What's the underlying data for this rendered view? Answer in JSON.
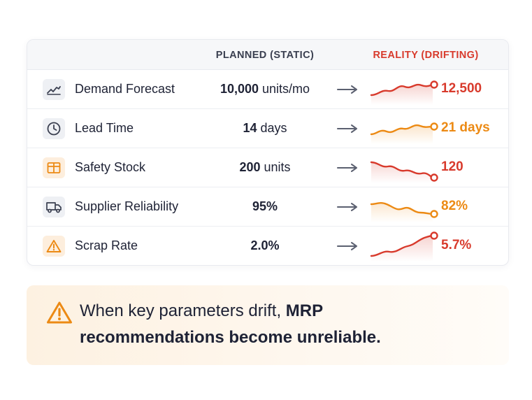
{
  "table": {
    "header": {
      "planned": "PLANNED (STATIC)",
      "reality": "REALITY (DRIFTING)"
    },
    "rows": [
      {
        "icon": "trend-chart-icon",
        "label": "Demand Forecast",
        "planned_value": "10,000",
        "planned_unit": " units/mo",
        "reality": "12,500",
        "trend": "rising",
        "color": "#d83a2c"
      },
      {
        "icon": "clock-icon",
        "label": "Lead Time",
        "planned_value": "14",
        "planned_unit": " days",
        "reality": "21 days",
        "trend": "rising",
        "color": "#ec8a14"
      },
      {
        "icon": "box-icon",
        "label": "Safety Stock",
        "planned_value": "200",
        "planned_unit": " units",
        "reality": "120",
        "trend": "falling",
        "color": "#d83a2c"
      },
      {
        "icon": "truck-icon",
        "label": "Supplier Reliability",
        "planned_value": "95%",
        "planned_unit": "",
        "reality": "82%",
        "trend": "falling",
        "color": "#ec8a14"
      },
      {
        "icon": "warning-icon",
        "label": "Scrap Rate",
        "planned_value": "2.0%",
        "planned_unit": "",
        "reality": "5.7%",
        "trend": "rising",
        "color": "#d83a2c"
      }
    ]
  },
  "callout": {
    "icon": "warning-icon",
    "text_plain": "When key parameters drift, ",
    "text_bold": "MRP recommendations become unreliable."
  },
  "colors": {
    "red": "#d83a2c",
    "orange": "#ec8a14",
    "text": "#1e2235",
    "arrow": "#5b6070"
  }
}
